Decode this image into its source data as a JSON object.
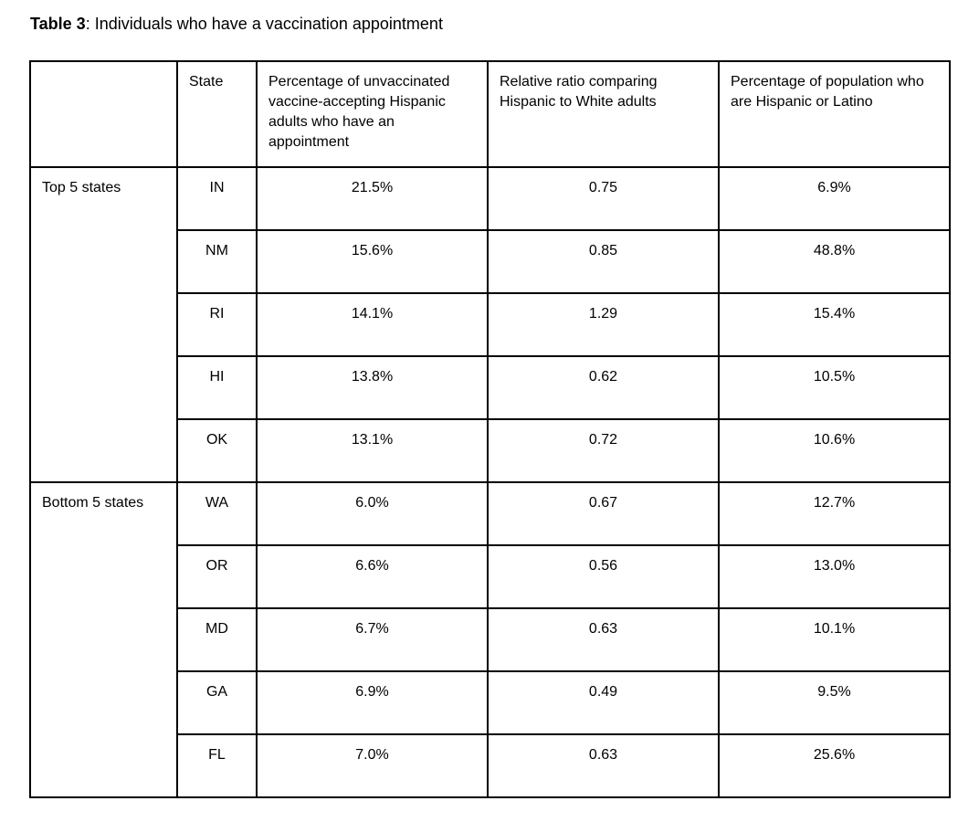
{
  "title": {
    "prefix": "Table 3",
    "rest": ": Individuals who have a vaccination appointment"
  },
  "table": {
    "headers": {
      "group": "",
      "state": "State",
      "pct_appointment": "Percentage of unvaccinated vaccine-accepting Hispanic adults who have an appointment",
      "relative_ratio": "Relative ratio comparing Hispanic to White adults",
      "pct_population": "Percentage of population who are Hispanic or Latino"
    },
    "groups": [
      {
        "label": "Top 5 states",
        "rows": [
          {
            "state": "IN",
            "pct_appointment": "21.5%",
            "relative_ratio": "0.75",
            "pct_population": "6.9%"
          },
          {
            "state": "NM",
            "pct_appointment": "15.6%",
            "relative_ratio": "0.85",
            "pct_population": "48.8%"
          },
          {
            "state": "RI",
            "pct_appointment": "14.1%",
            "relative_ratio": "1.29",
            "pct_population": "15.4%"
          },
          {
            "state": "HI",
            "pct_appointment": "13.8%",
            "relative_ratio": "0.62",
            "pct_population": "10.5%"
          },
          {
            "state": "OK",
            "pct_appointment": "13.1%",
            "relative_ratio": "0.72",
            "pct_population": "10.6%"
          }
        ]
      },
      {
        "label": "Bottom 5 states",
        "rows": [
          {
            "state": "WA",
            "pct_appointment": "6.0%",
            "relative_ratio": "0.67",
            "pct_population": "12.7%"
          },
          {
            "state": "OR",
            "pct_appointment": "6.6%",
            "relative_ratio": "0.56",
            "pct_population": "13.0%"
          },
          {
            "state": "MD",
            "pct_appointment": "6.7%",
            "relative_ratio": "0.63",
            "pct_population": "10.1%"
          },
          {
            "state": "GA",
            "pct_appointment": "6.9%",
            "relative_ratio": "0.49",
            "pct_population": "9.5%"
          },
          {
            "state": "FL",
            "pct_appointment": "7.0%",
            "relative_ratio": "0.63",
            "pct_population": "25.6%"
          }
        ]
      }
    ]
  }
}
